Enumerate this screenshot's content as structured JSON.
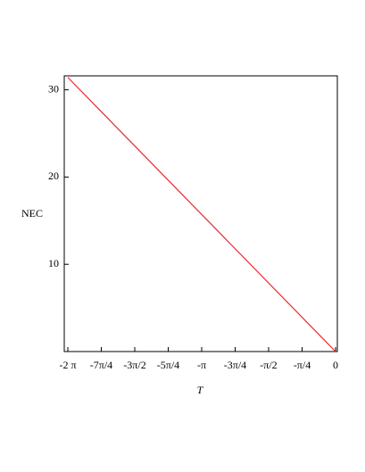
{
  "chart_data": {
    "type": "line",
    "x_label": "T",
    "y_label": "NEC",
    "x": [
      -6.283,
      0
    ],
    "series": [
      {
        "color": "#e8262b",
        "values": [
          31.42,
          0
        ]
      }
    ],
    "xlim": [
      -6.367,
      0.042
    ],
    "ylim": [
      0,
      31.6
    ],
    "xticks": [
      {
        "value": -6.283,
        "label": "-2 π"
      },
      {
        "value": -5.498,
        "label": "-7π/4"
      },
      {
        "value": -4.712,
        "label": "-3π/2"
      },
      {
        "value": -3.927,
        "label": "-5π/4"
      },
      {
        "value": -3.1416,
        "label": "-π"
      },
      {
        "value": -2.356,
        "label": "-3π/4"
      },
      {
        "value": -1.571,
        "label": "-π/2"
      },
      {
        "value": -0.785,
        "label": "-π/4"
      },
      0
    ],
    "yticks": [
      10,
      20,
      30
    ]
  }
}
